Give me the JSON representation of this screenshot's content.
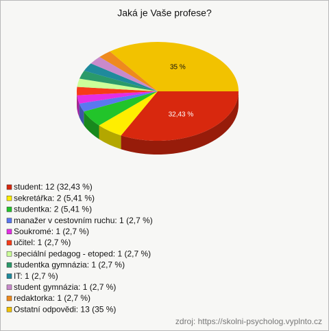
{
  "chart_data": {
    "type": "pie",
    "title": "Jaká je Vaše profese?",
    "categories": [
      "student: 12 (32,43 %)",
      "sekretářka: 2 (5,41 %)",
      "studentka: 2 (5,41 %)",
      "manažer v cestovním ruchu: 1 (2,7 %)",
      "Soukromé: 1 (2,7 %)",
      "učitel: 1 (2,7 %)",
      "speciální pedagog - etoped: 1 (2,7 %)",
      "studentka gymnázia: 1 (2,7 %)",
      "IT: 1 (2,7 %)",
      "student gymnázia: 1 (2,7 %)",
      "redaktorka: 1 (2,7 %)",
      "Ostatní odpovědi: 13 (35 %)"
    ],
    "values": [
      32.43,
      5.41,
      5.41,
      2.7,
      2.7,
      2.7,
      2.7,
      2.7,
      2.7,
      2.7,
      2.7,
      35
    ],
    "value_labels": [
      "32,43 %",
      null,
      null,
      null,
      null,
      null,
      null,
      null,
      null,
      null,
      null,
      "35 %"
    ],
    "colors": [
      "#d8280e",
      "#ffee00",
      "#22c42a",
      "#5a78f0",
      "#e42ee4",
      "#f63b18",
      "#ccff99",
      "#2a9a6a",
      "#1f8a9c",
      "#c98acb",
      "#ee8a1e",
      "#f2c200"
    ],
    "source": "zdroj: https://skolni-psycholog.vyplnto.cz"
  }
}
